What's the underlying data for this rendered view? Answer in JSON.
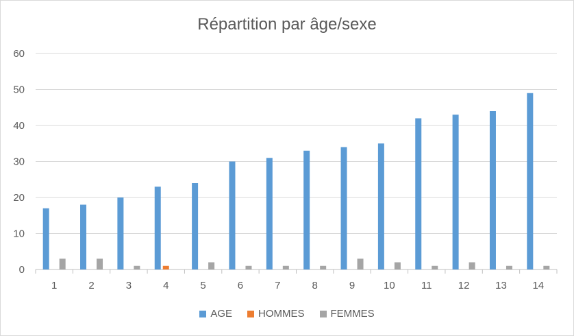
{
  "chart_data": {
    "type": "bar",
    "title": "Répartition par âge/sexe",
    "categories": [
      "1",
      "2",
      "3",
      "4",
      "5",
      "6",
      "7",
      "8",
      "9",
      "10",
      "11",
      "12",
      "13",
      "14"
    ],
    "ylim": [
      0,
      60
    ],
    "yticks": [
      0,
      10,
      20,
      30,
      40,
      50,
      60
    ],
    "grid": true,
    "legend_position": "bottom",
    "series": [
      {
        "name": "AGE",
        "color": "#5b9bd5",
        "values": [
          17,
          18,
          20,
          23,
          24,
          30,
          31,
          33,
          34,
          35,
          42,
          43,
          44,
          49
        ]
      },
      {
        "name": "HOMMES",
        "color": "#ed7d31",
        "values": [
          0,
          0,
          0,
          1,
          0,
          0,
          0,
          0,
          0,
          0,
          0,
          0,
          0,
          0
        ]
      },
      {
        "name": "FEMMES",
        "color": "#a5a5a5",
        "values": [
          3,
          3,
          1,
          0,
          2,
          1,
          1,
          1,
          3,
          2,
          1,
          2,
          1,
          1
        ]
      }
    ]
  }
}
